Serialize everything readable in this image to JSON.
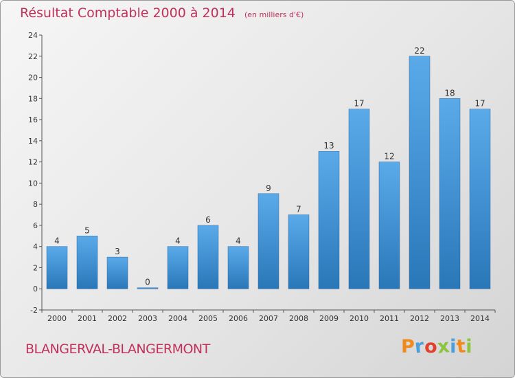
{
  "header": {
    "title": "Résultat Comptable 2000 à 2014",
    "unit": "(en milliers d'€)"
  },
  "footer": {
    "commune": "BLANGERVAL-BLANGERMONT",
    "brand": "Proxiti"
  },
  "colors": {
    "title": "#c0315a",
    "bar_top": "#5aaaea",
    "bar_bottom": "#2a77b8",
    "brand_letters": [
      "#f08a1c",
      "#4aa0dc",
      "#e0402c",
      "#8bc53f",
      "#4aa0dc",
      "#f08a1c",
      "#8bc53f"
    ]
  },
  "chart_data": {
    "type": "bar",
    "categories": [
      "2000",
      "2001",
      "2002",
      "2003",
      "2004",
      "2005",
      "2006",
      "2007",
      "2008",
      "2009",
      "2010",
      "2011",
      "2012",
      "2013",
      "2014"
    ],
    "values": [
      4,
      5,
      3,
      0,
      4,
      6,
      4,
      9,
      7,
      13,
      17,
      12,
      22,
      18,
      17
    ],
    "data_labels": [
      "4",
      "5",
      "3",
      "0",
      "4",
      "6",
      "4",
      "9",
      "7",
      "13",
      "17",
      "12",
      "22",
      "18",
      "17"
    ],
    "yticks": [
      "-2",
      "0",
      "2",
      "4",
      "6",
      "8",
      "10",
      "12",
      "14",
      "16",
      "18",
      "20",
      "22",
      "24"
    ],
    "ylim": [
      -2,
      24
    ],
    "grid": false,
    "legend": "none"
  }
}
